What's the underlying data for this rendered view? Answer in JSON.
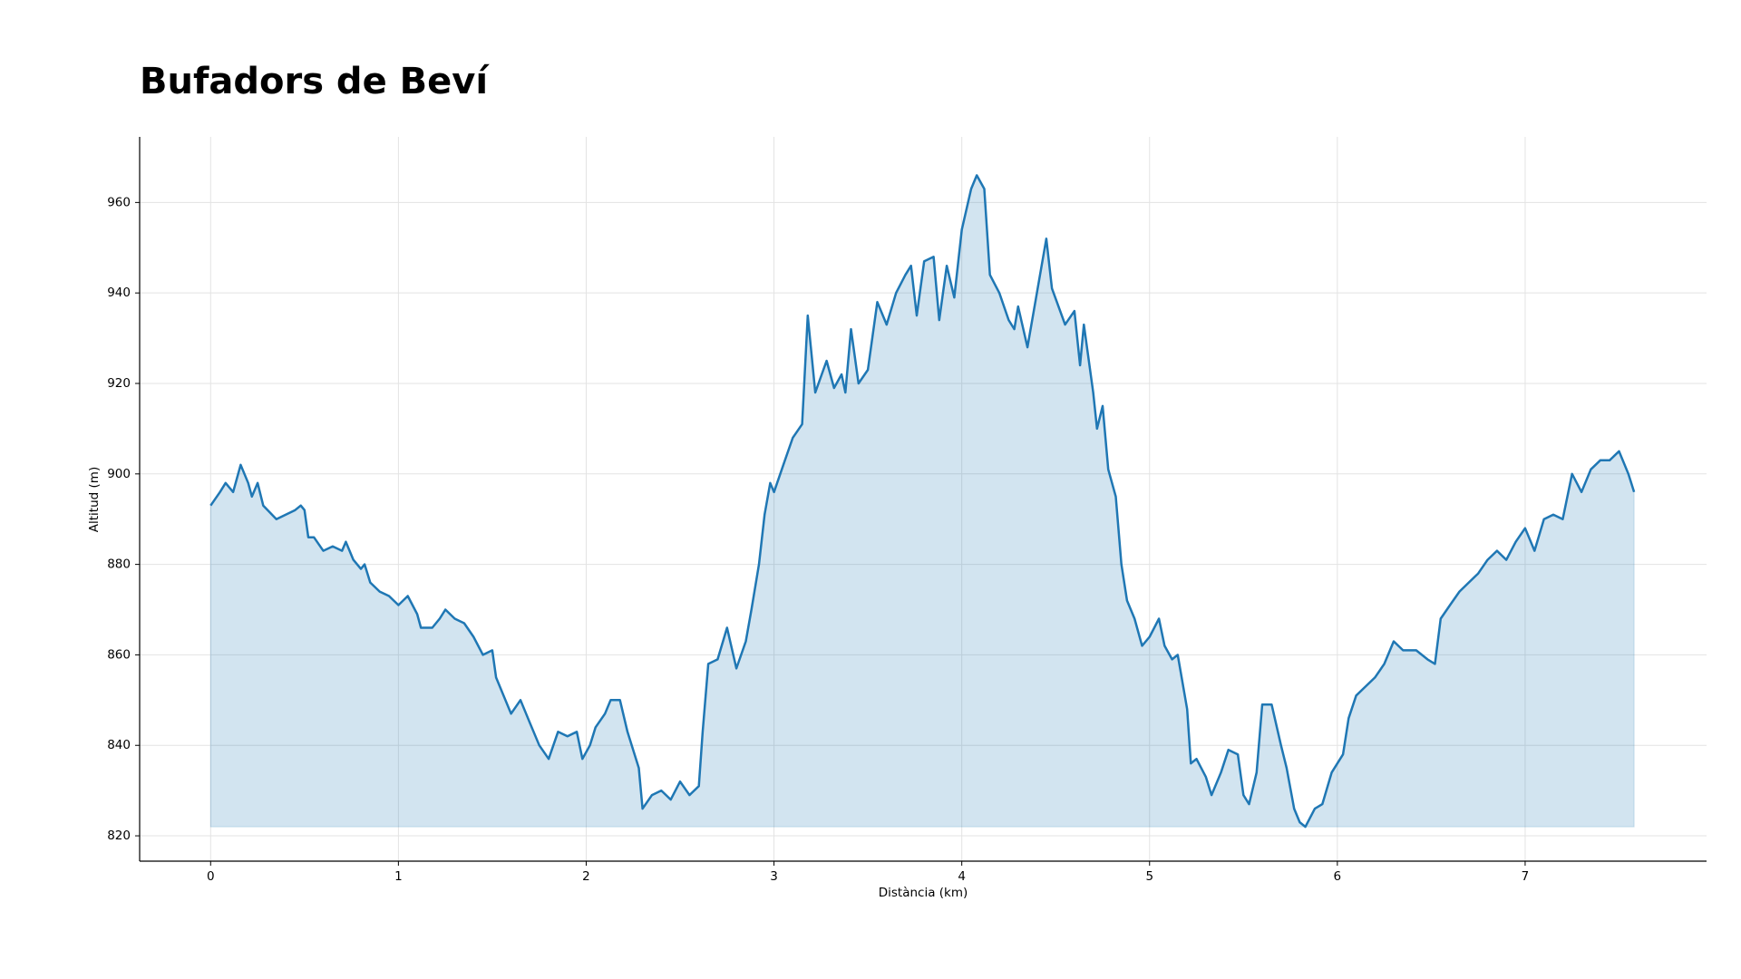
{
  "chart_data": {
    "type": "area",
    "title": "Bufadors de Beví",
    "xlabel": "Distància (km)",
    "ylabel": "Altitud (m)",
    "color": "#1f77b4",
    "fill_color": "#1f77b4",
    "grid": true,
    "xlim": [
      -0.378,
      7.966
    ],
    "ylim": [
      814.4,
      974.5
    ],
    "xticks": [
      0,
      1,
      2,
      3,
      4,
      5,
      6,
      7
    ],
    "yticks": [
      820,
      840,
      860,
      880,
      900,
      920,
      940,
      960
    ],
    "x": [
      0.0,
      0.05,
      0.08,
      0.12,
      0.16,
      0.2,
      0.22,
      0.25,
      0.28,
      0.35,
      0.45,
      0.48,
      0.5,
      0.52,
      0.55,
      0.6,
      0.65,
      0.7,
      0.72,
      0.76,
      0.8,
      0.82,
      0.85,
      0.9,
      0.95,
      1.0,
      1.05,
      1.1,
      1.12,
      1.18,
      1.22,
      1.25,
      1.3,
      1.35,
      1.4,
      1.45,
      1.5,
      1.52,
      1.55,
      1.6,
      1.65,
      1.7,
      1.75,
      1.8,
      1.85,
      1.9,
      1.95,
      1.98,
      2.02,
      2.05,
      2.1,
      2.13,
      2.18,
      2.22,
      2.28,
      2.3,
      2.35,
      2.4,
      2.45,
      2.5,
      2.55,
      2.6,
      2.62,
      2.65,
      2.7,
      2.75,
      2.8,
      2.85,
      2.88,
      2.92,
      2.95,
      2.98,
      3.0,
      3.05,
      3.1,
      3.15,
      3.18,
      3.22,
      3.28,
      3.32,
      3.36,
      3.38,
      3.41,
      3.45,
      3.5,
      3.55,
      3.6,
      3.65,
      3.7,
      3.73,
      3.76,
      3.8,
      3.85,
      3.88,
      3.92,
      3.96,
      4.0,
      4.05,
      4.08,
      4.12,
      4.15,
      4.2,
      4.25,
      4.28,
      4.3,
      4.35,
      4.4,
      4.45,
      4.48,
      4.55,
      4.6,
      4.63,
      4.65,
      4.7,
      4.72,
      4.75,
      4.78,
      4.82,
      4.85,
      4.88,
      4.92,
      4.96,
      5.0,
      5.05,
      5.08,
      5.12,
      5.15,
      5.2,
      5.22,
      5.25,
      5.3,
      5.33,
      5.38,
      5.42,
      5.47,
      5.5,
      5.53,
      5.57,
      5.6,
      5.65,
      5.7,
      5.73,
      5.77,
      5.8,
      5.83,
      5.88,
      5.92,
      5.97,
      6.03,
      6.06,
      6.1,
      6.15,
      6.2,
      6.25,
      6.3,
      6.35,
      6.42,
      6.48,
      6.52,
      6.55,
      6.6,
      6.65,
      6.7,
      6.75,
      6.8,
      6.85,
      6.9,
      6.95,
      7.0,
      7.02,
      7.05,
      7.1,
      7.15,
      7.2,
      7.25,
      7.3,
      7.35,
      7.4,
      7.45,
      7.5,
      7.55,
      7.58
    ],
    "values": [
      893,
      896,
      898,
      896,
      902,
      898,
      895,
      898,
      893,
      890,
      892,
      893,
      892,
      886,
      886,
      883,
      884,
      883,
      885,
      881,
      879,
      880,
      876,
      874,
      873,
      871,
      873,
      869,
      866,
      866,
      868,
      870,
      868,
      867,
      864,
      860,
      861,
      855,
      852,
      847,
      850,
      845,
      840,
      837,
      843,
      842,
      843,
      837,
      840,
      844,
      847,
      850,
      850,
      843,
      835,
      826,
      829,
      830,
      828,
      832,
      829,
      831,
      843,
      858,
      859,
      866,
      857,
      863,
      870,
      880,
      891,
      898,
      896,
      902,
      908,
      911,
      935,
      918,
      925,
      919,
      922,
      918,
      932,
      920,
      923,
      938,
      933,
      940,
      944,
      946,
      935,
      947,
      948,
      934,
      946,
      939,
      954,
      963,
      966,
      963,
      944,
      940,
      934,
      932,
      937,
      928,
      940,
      952,
      941,
      933,
      936,
      924,
      933,
      918,
      910,
      915,
      901,
      895,
      880,
      872,
      868,
      862,
      864,
      868,
      862,
      859,
      860,
      848,
      836,
      837,
      833,
      829,
      834,
      839,
      838,
      829,
      827,
      834,
      849,
      849,
      840,
      835,
      826,
      823,
      822,
      826,
      827,
      834,
      838,
      846,
      851,
      853,
      855,
      858,
      863,
      861,
      861,
      859,
      858,
      868,
      871,
      874,
      876,
      878,
      881,
      883,
      881,
      885,
      888,
      886,
      883,
      890,
      891,
      890,
      900,
      896,
      901,
      903,
      903,
      905,
      900,
      896
    ]
  }
}
